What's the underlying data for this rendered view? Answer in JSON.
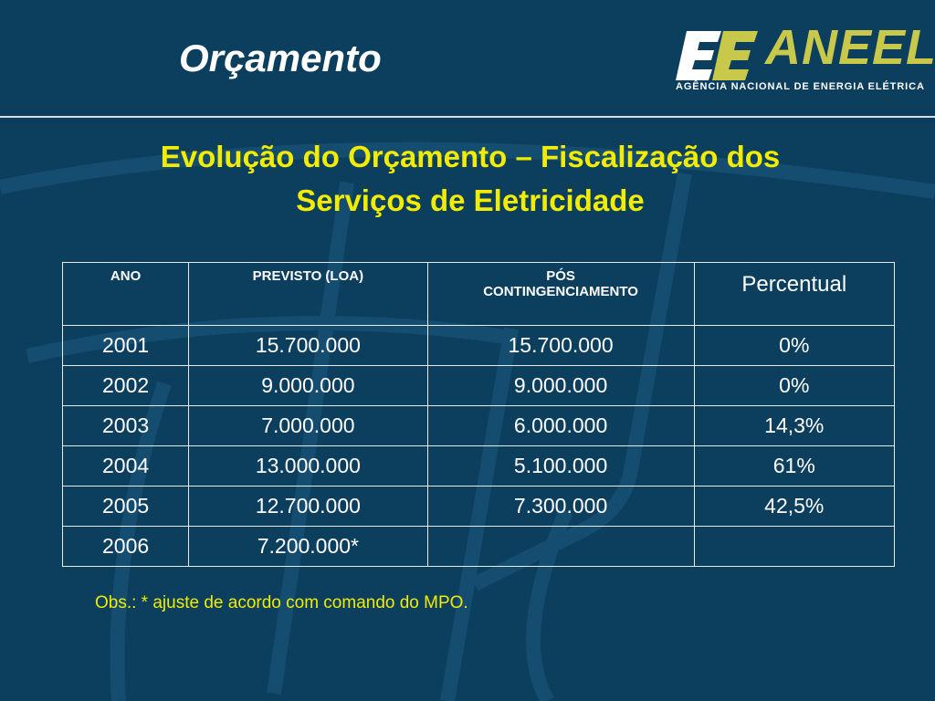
{
  "slide": {
    "title": "Orçamento",
    "heading_line1": "Evolução do Orçamento – Fiscalização dos",
    "heading_line2": "Serviços de Eletricidade",
    "note": "Obs.: * ajuste de acordo com comando do MPO."
  },
  "logo": {
    "name": "ANEEL",
    "subtitle": "AGÊNCIA NACIONAL DE ENERGIA ELÉTRICA",
    "icon": "aneel-ee-emblem-icon"
  },
  "colors": {
    "background": "#0c3e5e",
    "heading": "#f2ec00",
    "logo_text": "#c8c84a"
  },
  "table": {
    "headers": [
      "ANO",
      "PREVISTO (LOA)",
      "PÓS CONTINGENCIAMENTO",
      "Percentual"
    ],
    "rows": [
      [
        "2001",
        "15.700.000",
        "15.700.000",
        "0%"
      ],
      [
        "2002",
        "9.000.000",
        "9.000.000",
        "0%"
      ],
      [
        "2003",
        "7.000.000",
        "6.000.000",
        "14,3%"
      ],
      [
        "2004",
        "13.000.000",
        "5.100.000",
        "61%"
      ],
      [
        "2005",
        "12.700.000",
        "7.300.000",
        "42,5%"
      ],
      [
        "2006",
        "7.200.000*",
        "",
        ""
      ]
    ]
  }
}
